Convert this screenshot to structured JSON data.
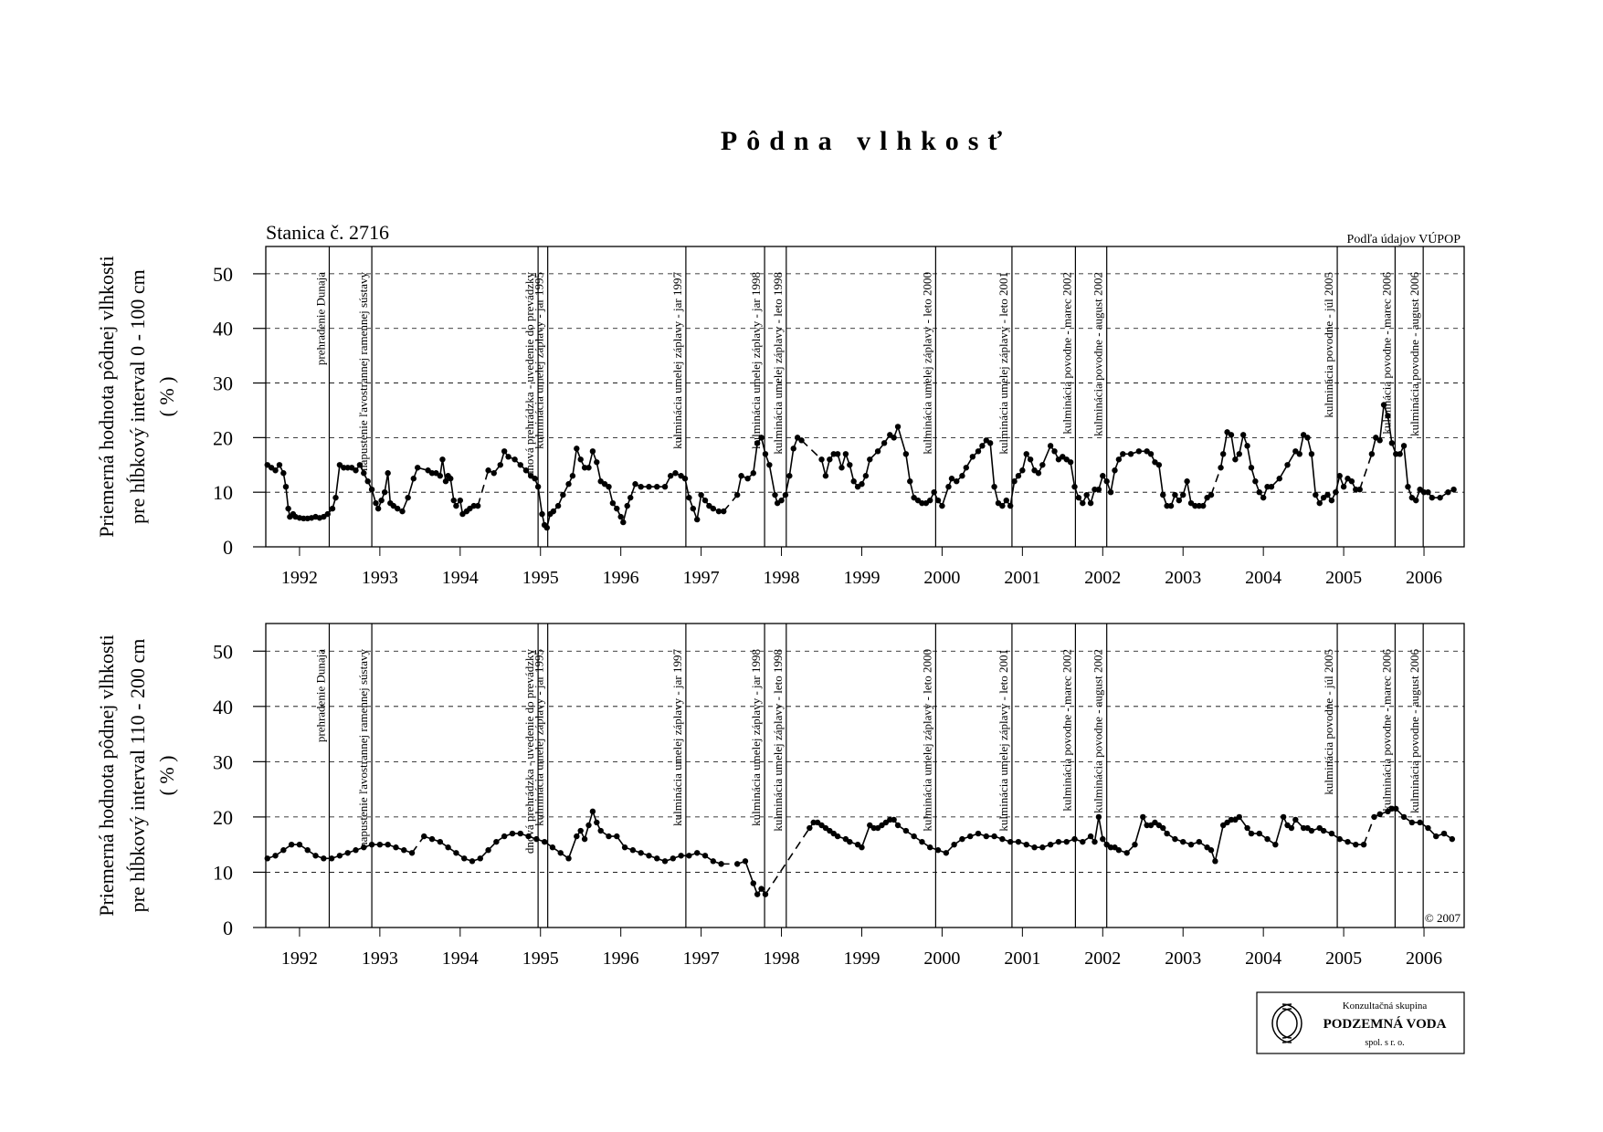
{
  "title": "Pôdna vlhkosť",
  "chart_data": [
    {
      "type": "line",
      "station": "Stanica č. 2716",
      "source": "Podľa údajov VÚPOP",
      "ylabel": [
        "Priemerná hodnota pôdnej vlhkosti",
        "pre hĺbkový interval 0 - 100 cm",
        "( % )"
      ],
      "color": "#000000",
      "grid": true,
      "xlim": [
        1992.08,
        2007.0
      ],
      "xticks": [
        {
          "value": 1992.5,
          "label": "1992"
        },
        {
          "value": 1993.5,
          "label": "1993"
        },
        {
          "value": 1994.5,
          "label": "1994"
        },
        {
          "value": 1995.5,
          "label": "1995"
        },
        {
          "value": 1996.5,
          "label": "1996"
        },
        {
          "value": 1997.5,
          "label": "1997"
        },
        {
          "value": 1998.5,
          "label": "1998"
        },
        {
          "value": 1999.5,
          "label": "1999"
        },
        {
          "value": 2000.5,
          "label": "2000"
        },
        {
          "value": 2001.5,
          "label": "2001"
        },
        {
          "value": 2002.5,
          "label": "2002"
        },
        {
          "value": 2003.5,
          "label": "2003"
        },
        {
          "value": 2004.5,
          "label": "2004"
        },
        {
          "value": 2005.5,
          "label": "2005"
        },
        {
          "value": 2006.5,
          "label": "2006"
        }
      ],
      "ylim": [
        0,
        55
      ],
      "yticks": [
        0,
        10,
        20,
        30,
        40,
        50
      ],
      "events": [
        {
          "x": 1992.87,
          "label": "prehradenie Dunaja"
        },
        {
          "x": 1993.4,
          "label": "napustenie ľavostrannej ramennej sústavy"
        },
        {
          "x": 1995.47,
          "label": "dnová prehrádzka - uvedenie do prevádzky"
        },
        {
          "x": 1995.59,
          "label": "kulminácia umelej záplavy - jar 1995"
        },
        {
          "x": 1997.31,
          "label": "kulminácia umelej záplavy - jar 1997"
        },
        {
          "x": 1998.29,
          "label": "kulminácia umelej záplavy - jar 1998"
        },
        {
          "x": 1998.56,
          "label": "kulminácia umelej záplavy - leto 1998"
        },
        {
          "x": 2000.42,
          "label": "kulminácia umelej záplavy - leto 2000"
        },
        {
          "x": 2001.37,
          "label": "kulminácia umelej záplavy - leto 2001"
        },
        {
          "x": 2002.16,
          "label": "kulminácia povodne - marec 2002"
        },
        {
          "x": 2002.55,
          "label": "kulminácia povodne - august 2002"
        },
        {
          "x": 2005.42,
          "label": "kulminácia povodne - júl 2005"
        },
        {
          "x": 2006.14,
          "label": "kulminácia povodne - marec 2006"
        },
        {
          "x": 2006.49,
          "label": "kulminácia povodne - august 2006"
        }
      ],
      "x": [
        1992.1,
        1992.15,
        1992.2,
        1992.25,
        1992.3,
        1992.33,
        1992.36,
        1992.38,
        1992.42,
        1992.45,
        1992.5,
        1992.55,
        1992.6,
        1992.65,
        1992.7,
        1992.75,
        1992.8,
        1992.85,
        1992.91,
        1992.95,
        1993.0,
        1993.05,
        1993.1,
        1993.15,
        1993.2,
        1993.25,
        1993.3,
        1993.35,
        1993.4,
        1993.45,
        1993.48,
        1993.52,
        1993.56,
        1993.6,
        1993.63,
        1993.67,
        1993.72,
        1993.78,
        1993.85,
        1993.92,
        1993.97,
        1994.1,
        1994.15,
        1994.2,
        1994.25,
        1994.28,
        1994.32,
        1994.35,
        1994.38,
        1994.42,
        1994.45,
        1994.5,
        1994.53,
        1994.58,
        1994.62,
        1994.67,
        1994.72,
        1994.85,
        1994.92,
        1995.0,
        1995.05,
        1995.1,
        1995.18,
        1995.25,
        1995.32,
        1995.38,
        1995.43,
        1995.47,
        1995.52,
        1995.55,
        1995.58,
        1995.62,
        1995.66,
        1995.72,
        1995.78,
        1995.85,
        1995.9,
        1995.95,
        1996.0,
        1996.05,
        1996.1,
        1996.15,
        1996.2,
        1996.25,
        1996.3,
        1996.35,
        1996.4,
        1996.45,
        1996.5,
        1996.53,
        1996.58,
        1996.62,
        1996.68,
        1996.75,
        1996.85,
        1996.95,
        1997.05,
        1997.12,
        1997.18,
        1997.25,
        1997.3,
        1997.35,
        1997.4,
        1997.45,
        1997.5,
        1997.55,
        1997.6,
        1997.65,
        1997.72,
        1997.78,
        1997.95,
        1998.0,
        1998.08,
        1998.15,
        1998.2,
        1998.25,
        1998.3,
        1998.35,
        1998.42,
        1998.45,
        1998.5,
        1998.55,
        1998.6,
        1998.65,
        1998.7,
        1998.75,
        1999.0,
        1999.05,
        1999.1,
        1999.15,
        1999.2,
        1999.25,
        1999.3,
        1999.35,
        1999.4,
        1999.45,
        1999.5,
        1999.55,
        1999.6,
        1999.7,
        1999.78,
        1999.85,
        1999.9,
        1999.95,
        2000.05,
        2000.1,
        2000.15,
        2000.2,
        2000.25,
        2000.3,
        2000.35,
        2000.4,
        2000.45,
        2000.5,
        2000.58,
        2000.62,
        2000.68,
        2000.75,
        2000.8,
        2000.88,
        2000.95,
        2001.0,
        2001.05,
        2001.1,
        2001.15,
        2001.2,
        2001.25,
        2001.3,
        2001.35,
        2001.4,
        2001.45,
        2001.5,
        2001.55,
        2001.6,
        2001.65,
        2001.7,
        2001.75,
        2001.85,
        2001.9,
        2001.95,
        2002.0,
        2002.05,
        2002.1,
        2002.15,
        2002.2,
        2002.25,
        2002.3,
        2002.35,
        2002.4,
        2002.45,
        2002.5,
        2002.55,
        2002.6,
        2002.65,
        2002.7,
        2002.75,
        2002.85,
        2002.95,
        2003.05,
        2003.1,
        2003.15,
        2003.2,
        2003.25,
        2003.3,
        2003.35,
        2003.4,
        2003.45,
        2003.5,
        2003.55,
        2003.6,
        2003.65,
        2003.7,
        2003.75,
        2003.8,
        2003.85,
        2003.97,
        2004.0,
        2004.05,
        2004.1,
        2004.15,
        2004.2,
        2004.25,
        2004.3,
        2004.35,
        2004.4,
        2004.45,
        2004.5,
        2004.55,
        2004.6,
        2004.7,
        2004.8,
        2004.9,
        2004.95,
        2005.0,
        2005.05,
        2005.1,
        2005.15,
        2005.2,
        2005.25,
        2005.3,
        2005.35,
        2005.4,
        2005.45,
        2005.5,
        2005.55,
        2005.6,
        2005.65,
        2005.7,
        2005.85,
        2005.9,
        2005.95,
        2006.0,
        2006.05,
        2006.1,
        2006.15,
        2006.2,
        2006.25,
        2006.3,
        2006.35,
        2006.4,
        2006.45,
        2006.5,
        2006.55,
        2006.6,
        2006.7,
        2006.8,
        2006.87
      ],
      "values": [
        15,
        14.5,
        14,
        15,
        13.5,
        11,
        7,
        5.5,
        6,
        5.5,
        5.3,
        5.2,
        5.2,
        5.3,
        5.5,
        5.3,
        5.5,
        6,
        7,
        9,
        15,
        14.5,
        14.5,
        14.5,
        14,
        15,
        13.5,
        12,
        10.5,
        8,
        7,
        8.5,
        10,
        13.5,
        8,
        7.5,
        7,
        6.5,
        9,
        12.5,
        14.5,
        14,
        13.5,
        13.5,
        13,
        16,
        12,
        13,
        12.5,
        8.5,
        7.5,
        8.5,
        6,
        6.5,
        7,
        7.5,
        7.5,
        14,
        13.5,
        15,
        17.5,
        16.5,
        16,
        15,
        14,
        13,
        12.5,
        11,
        6,
        4,
        3.5,
        6,
        6.5,
        7.5,
        9.5,
        11.5,
        13,
        18,
        16,
        14.5,
        14.5,
        17.5,
        15.5,
        12,
        11.5,
        11,
        8,
        7,
        5.5,
        4.5,
        7.5,
        9,
        11.5,
        11,
        11,
        11,
        11,
        13,
        13.5,
        13,
        12.5,
        9,
        7,
        5,
        9.5,
        8.5,
        7.5,
        7,
        6.5,
        6.5,
        9.5,
        13,
        12.5,
        13.5,
        19,
        20,
        17,
        15,
        9.5,
        8,
        8.5,
        9.5,
        13,
        18,
        20,
        19.5,
        16,
        13,
        16,
        17,
        17,
        14.5,
        17,
        15,
        12,
        11,
        11.5,
        13,
        16,
        17.5,
        19,
        20.5,
        20,
        22,
        17,
        12,
        9,
        8.5,
        8,
        8,
        8.5,
        10,
        8.5,
        7.5,
        11,
        12.5,
        12,
        13,
        14.5,
        16.5,
        17.5,
        18.5,
        19.5,
        19,
        11,
        8,
        7.5,
        8.5,
        7.5,
        12,
        13,
        14,
        17,
        16,
        14,
        13.5,
        15,
        18.5,
        17.5,
        16,
        16.5,
        16,
        15.5,
        11,
        9,
        8,
        9.5,
        8,
        10.5,
        10.5,
        13,
        12,
        10,
        14,
        16,
        17,
        17,
        17.5,
        17.5,
        17,
        15.5,
        15,
        9.5,
        7.5,
        7.5,
        9.5,
        8.5,
        9.5,
        12,
        8,
        7.5,
        7.5,
        7.5,
        9,
        9.5,
        14.5,
        17,
        21,
        20.5,
        16,
        17,
        20.5,
        18.5,
        14.5,
        12,
        10,
        9,
        11,
        11,
        12.5,
        15,
        17.5,
        17,
        20.5,
        20,
        17,
        9.5,
        8,
        9,
        9.5,
        8.5,
        10,
        13,
        11,
        12.5,
        12,
        10.5,
        10.5,
        17,
        20,
        19.5,
        26,
        24,
        19,
        17,
        17,
        18.5,
        11,
        9,
        8.5,
        10.5,
        10,
        10,
        9,
        9,
        10,
        10.5
      ]
    },
    {
      "type": "line",
      "copyright": "© 2007",
      "ylabel": [
        "Priemerná hodnota pôdnej vlhkosti",
        "pre hĺbkový interval 110 - 200 cm",
        "( % )"
      ],
      "color": "#000000",
      "grid": true,
      "xlim": [
        1992.08,
        2007.0
      ],
      "xticks": [
        {
          "value": 1992.5,
          "label": "1992"
        },
        {
          "value": 1993.5,
          "label": "1993"
        },
        {
          "value": 1994.5,
          "label": "1994"
        },
        {
          "value": 1995.5,
          "label": "1995"
        },
        {
          "value": 1996.5,
          "label": "1996"
        },
        {
          "value": 1997.5,
          "label": "1997"
        },
        {
          "value": 1998.5,
          "label": "1998"
        },
        {
          "value": 1999.5,
          "label": "1999"
        },
        {
          "value": 2000.5,
          "label": "2000"
        },
        {
          "value": 2001.5,
          "label": "2001"
        },
        {
          "value": 2002.5,
          "label": "2002"
        },
        {
          "value": 2003.5,
          "label": "2003"
        },
        {
          "value": 2004.5,
          "label": "2004"
        },
        {
          "value": 2005.5,
          "label": "2005"
        },
        {
          "value": 2006.5,
          "label": "2006"
        }
      ],
      "ylim": [
        0,
        55
      ],
      "yticks": [
        0,
        10,
        20,
        30,
        40,
        50
      ],
      "events": [
        {
          "x": 1992.87,
          "label": "prehradenie Dunaja"
        },
        {
          "x": 1993.4,
          "label": "napustenie ľavostrannej ramennej sústavy"
        },
        {
          "x": 1995.47,
          "label": "dnová prehrádzka - uvedenie do prevádzky"
        },
        {
          "x": 1995.59,
          "label": "kulminácia umelej záplavy - jar 1995"
        },
        {
          "x": 1997.31,
          "label": "kulminácia umelej záplavy - jar 1997"
        },
        {
          "x": 1998.29,
          "label": "kulminácia umelej záplavy - jar 1998"
        },
        {
          "x": 1998.56,
          "label": "kulminácia umelej záplavy - leto 1998"
        },
        {
          "x": 2000.42,
          "label": "kulminácia umelej záplavy - leto 2000"
        },
        {
          "x": 2001.37,
          "label": "kulminácia umelej záplavy - leto 2001"
        },
        {
          "x": 2002.16,
          "label": "kulminácia povodne - marec 2002"
        },
        {
          "x": 2002.55,
          "label": "kulminácia povodne - august 2002"
        },
        {
          "x": 2005.42,
          "label": "kulminácia povodne - júl 2005"
        },
        {
          "x": 2006.14,
          "label": "kulminácia povodne - marec 2006"
        },
        {
          "x": 2006.49,
          "label": "kulminácia povodne - august 2006"
        }
      ],
      "x": [
        1992.1,
        1992.2,
        1992.3,
        1992.4,
        1992.5,
        1992.6,
        1992.7,
        1992.8,
        1992.9,
        1993.0,
        1993.1,
        1993.2,
        1993.3,
        1993.4,
        1993.5,
        1993.6,
        1993.7,
        1993.8,
        1993.9,
        1994.05,
        1994.15,
        1994.25,
        1994.35,
        1994.45,
        1994.55,
        1994.65,
        1994.75,
        1994.85,
        1994.95,
        1995.05,
        1995.15,
        1995.25,
        1995.35,
        1995.45,
        1995.55,
        1995.65,
        1995.75,
        1995.85,
        1995.95,
        1996.0,
        1996.05,
        1996.1,
        1996.15,
        1996.2,
        1996.25,
        1996.35,
        1996.45,
        1996.55,
        1996.65,
        1996.75,
        1996.85,
        1996.95,
        1997.05,
        1997.15,
        1997.25,
        1997.35,
        1997.45,
        1997.55,
        1997.65,
        1997.75,
        1997.95,
        1998.05,
        1998.15,
        1998.2,
        1998.25,
        1998.3,
        1998.85,
        1998.9,
        1998.95,
        1999.0,
        1999.05,
        1999.1,
        1999.15,
        1999.2,
        1999.3,
        1999.35,
        1999.45,
        1999.5,
        1999.6,
        1999.65,
        1999.7,
        1999.75,
        1999.8,
        1999.85,
        1999.9,
        1999.95,
        2000.05,
        2000.15,
        2000.25,
        2000.35,
        2000.45,
        2000.55,
        2000.65,
        2000.75,
        2000.85,
        2000.95,
        2001.05,
        2001.15,
        2001.25,
        2001.35,
        2001.45,
        2001.55,
        2001.65,
        2001.75,
        2001.85,
        2001.95,
        2002.05,
        2002.15,
        2002.25,
        2002.35,
        2002.4,
        2002.45,
        2002.5,
        2002.55,
        2002.6,
        2002.65,
        2002.7,
        2002.8,
        2002.9,
        2003.0,
        2003.05,
        2003.1,
        2003.15,
        2003.2,
        2003.25,
        2003.3,
        2003.4,
        2003.5,
        2003.6,
        2003.7,
        2003.8,
        2003.85,
        2003.9,
        2004.0,
        2004.05,
        2004.1,
        2004.15,
        2004.2,
        2004.3,
        2004.35,
        2004.45,
        2004.55,
        2004.65,
        2004.75,
        2004.8,
        2004.85,
        2004.9,
        2005.0,
        2005.05,
        2005.1,
        2005.2,
        2005.25,
        2005.35,
        2005.45,
        2005.55,
        2005.65,
        2005.75,
        2005.88,
        2005.95,
        2006.05,
        2006.1,
        2006.15,
        2006.25,
        2006.35,
        2006.45,
        2006.55,
        2006.65,
        2006.75,
        2006.85
      ],
      "values": [
        12.5,
        13,
        14,
        15,
        15,
        14,
        13,
        12.5,
        12.5,
        13,
        13.5,
        14,
        14.5,
        15,
        15,
        15,
        14.5,
        14,
        13.5,
        16.5,
        16,
        15.5,
        14.5,
        13.5,
        12.5,
        12,
        12.5,
        14,
        15.5,
        16.5,
        17,
        17,
        16.5,
        16,
        15.5,
        14.5,
        13.5,
        12.5,
        16.5,
        17.5,
        16,
        18.5,
        21,
        19,
        17.5,
        16.5,
        16.5,
        14.5,
        14,
        13.5,
        13,
        12.5,
        12,
        12.5,
        13,
        13,
        13.5,
        13,
        12,
        11.5,
        11.5,
        12,
        8,
        6,
        7,
        6,
        18,
        19,
        19,
        18.5,
        18,
        17.5,
        17,
        16.5,
        16,
        15.5,
        15,
        14.5,
        18.5,
        18,
        18,
        18.5,
        19,
        19.5,
        19.5,
        18.5,
        17.5,
        16.5,
        15.5,
        14.5,
        14,
        13.5,
        15,
        16,
        16.5,
        17,
        16.5,
        16.5,
        16,
        15.5,
        15.5,
        15,
        14.5,
        14.5,
        15,
        15.5,
        15.5,
        16,
        15.5,
        16.5,
        15.5,
        20,
        16,
        15,
        14.5,
        14.5,
        14,
        13.5,
        15,
        20,
        18.5,
        18.5,
        19,
        18.5,
        18,
        17,
        16,
        15.5,
        15,
        15.5,
        14.5,
        14,
        12,
        18.5,
        19,
        19.5,
        19.5,
        20,
        18,
        17,
        17,
        16,
        15,
        20,
        18.5,
        18,
        19.5,
        18,
        18,
        17.5,
        18,
        17.5,
        17,
        16,
        15.5,
        15,
        15,
        20,
        20.5,
        21,
        21.5,
        21.5,
        20,
        19,
        19,
        18,
        16.5,
        17,
        16
      ]
    }
  ],
  "logo": {
    "line1": "Konzultačná skupina",
    "line2": "PODZEMNÁ VODA",
    "line3": "spol. s r. o."
  }
}
